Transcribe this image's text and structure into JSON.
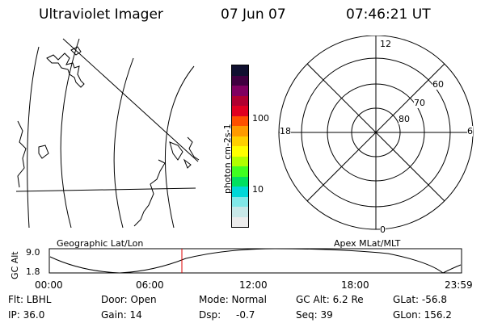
{
  "header": {
    "title": "Ultraviolet Imager",
    "date": "07 Jun 07",
    "time": "07:46:21 UT"
  },
  "geo_panel": {
    "label": "Geographic Lat/Lon"
  },
  "colorbar": {
    "axis_label": "photon cm-2s-1",
    "ticks": [
      "100",
      "10"
    ],
    "colors": [
      "#101030",
      "#400040",
      "#800060",
      "#b00030",
      "#e00020",
      "#ff5000",
      "#ff9a00",
      "#ffd000",
      "#ffff00",
      "#b0ff00",
      "#40ff20",
      "#00e060",
      "#00d8d8",
      "#80e8e8",
      "#c8e8e8",
      "#ececec"
    ]
  },
  "polar_plot": {
    "label": "Apex MLat/MLT",
    "mlt_labels": {
      "top": "12",
      "bottom": "0",
      "left": "18",
      "right": "6"
    },
    "lat_labels": [
      "60",
      "70",
      "80"
    ]
  },
  "altitude_plot": {
    "axis_label": "GC Alt",
    "y_ticks": [
      "9.0",
      "1.8"
    ],
    "x_ticks": [
      "00:00",
      "06:00",
      "12:00",
      "18:00",
      "23:59"
    ],
    "current_time_marker": "07:46",
    "marker_color": "#dd0000"
  },
  "status": {
    "flt": "Flt: LBHL",
    "ip": "IP: 36.0",
    "door": "Door: Open",
    "gain": "Gain: 14",
    "mode": "Mode: Normal",
    "dsp_label": "Dsp:",
    "dsp_value": "-0.7",
    "gc_alt": "GC Alt: 6.2 Re",
    "seq": "Seq: 39",
    "glat": "GLat: -56.8",
    "glon": "GLon: 156.2"
  }
}
